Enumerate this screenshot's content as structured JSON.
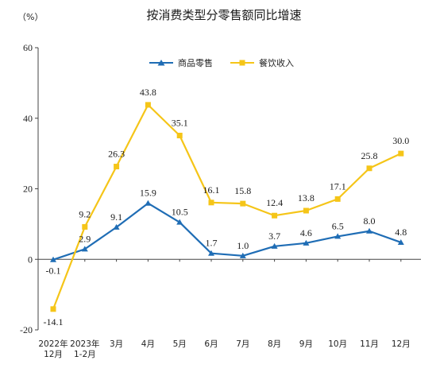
{
  "chart_data": {
    "type": "line",
    "title": "按消费类型分零售额同比增速",
    "ylabel": "（%）",
    "xlabel": "",
    "ylim": [
      -20,
      60
    ],
    "yticks": [
      "-20",
      "0",
      "20",
      "40",
      "60"
    ],
    "categories": [
      [
        "2022年",
        "12月"
      ],
      [
        "2023年",
        "1-2月"
      ],
      [
        "3月"
      ],
      [
        "4月"
      ],
      [
        "5月"
      ],
      [
        "6月"
      ],
      [
        "7月"
      ],
      [
        "8月"
      ],
      [
        "9月"
      ],
      [
        "10月"
      ],
      [
        "11月"
      ],
      [
        "12月"
      ]
    ],
    "grid": false,
    "legend_position": "top-center",
    "series": [
      {
        "name": "商品零售",
        "color": "#1f6db5",
        "marker": "triangle",
        "values": [
          -0.1,
          2.9,
          9.1,
          15.9,
          10.5,
          1.7,
          1.0,
          3.7,
          4.6,
          6.5,
          8.0,
          4.8
        ],
        "labels": [
          "-0.1",
          "2.9",
          "9.1",
          "15.9",
          "10.5",
          "1.7",
          "1.0",
          "3.7",
          "4.6",
          "6.5",
          "8.0",
          "4.8"
        ]
      },
      {
        "name": "餐饮收入",
        "color": "#f5c518",
        "marker": "square",
        "values": [
          -14.1,
          9.2,
          26.3,
          43.8,
          35.1,
          16.1,
          15.8,
          12.4,
          13.8,
          17.1,
          25.8,
          30.0
        ],
        "labels": [
          "-14.1",
          "9.2",
          "26.3",
          "43.8",
          "35.1",
          "16.1",
          "15.8",
          "12.4",
          "13.8",
          "17.1",
          "25.8",
          "30.0"
        ]
      }
    ]
  }
}
